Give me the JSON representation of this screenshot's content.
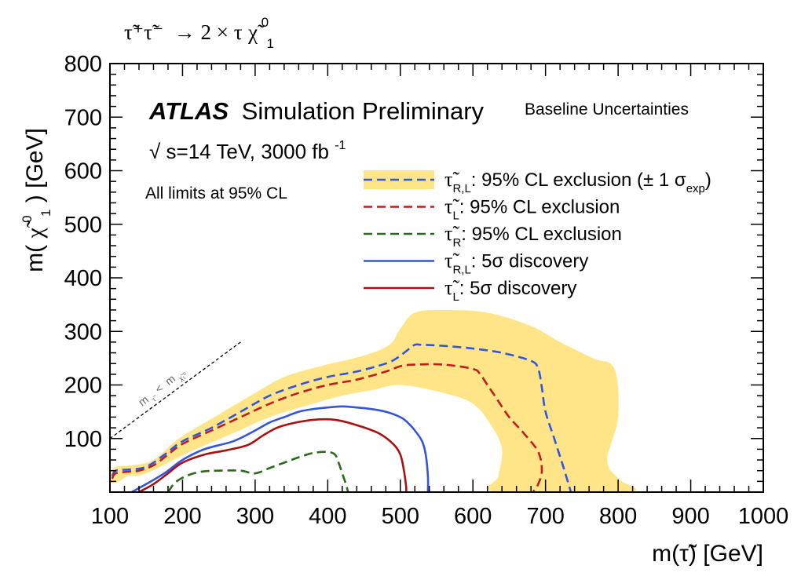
{
  "chart_data": {
    "type": "line",
    "title": "τ̃⁺τ̃⁻ → 2 × τχ̃⁰₁",
    "title_parts": {
      "lhs": "τ̃⁺τ̃⁻",
      "arrow": "→ 2 × τ",
      "chi": "χ̃",
      "sup": "0",
      "sub": "1"
    },
    "xlabel": "m(τ̃) [GeV]",
    "ylabel": "m(χ̃⁰₁) [GeV]",
    "ylabel_parts": {
      "pre": "m(",
      "chi": "χ̃",
      "sup": "0",
      "sub": "1",
      "post": ") [GeV]"
    },
    "xlim": [
      100,
      1000
    ],
    "ylim": [
      0,
      800
    ],
    "xticks": [
      "100",
      "200",
      "300",
      "400",
      "500",
      "600",
      "700",
      "800",
      "900",
      "1000"
    ],
    "yticks": [
      "100",
      "200",
      "300",
      "400",
      "500",
      "600",
      "700",
      "800"
    ],
    "grid": false,
    "legend_position": "top-right",
    "annotations": {
      "atlas": "ATLAS",
      "simulation": "Simulation Preliminary",
      "energy": "√s=14 TeV, 3000 fb⁻¹",
      "energy_parts": {
        "sqrt": "√",
        "s": "s=14 TeV, 3000 fb",
        "sup": "-1"
      },
      "limits": "All limits at 95% CL",
      "uncert": "Baseline Uncertainties",
      "diag": "m_τ̃ < m_χ̃⁰₁",
      "diag_parts": {
        "m": "m",
        "tau_sub": "τ̃",
        "lt": "<",
        "m2": "m",
        "chi_sub": "χ̃₁⁰"
      }
    },
    "colors": {
      "band": "#ffe588",
      "expected_RL": "#3355dd",
      "expected_L": "#c21c1c",
      "expected_R": "#2a6a1a",
      "discovery_RL": "#3355dd",
      "discovery_L": "#aa1010"
    },
    "band_sigma_exp": {
      "name": "τ̃R,L: 95% CL exclusion (± 1 σexp)",
      "points": [
        [
          100,
          20
        ],
        [
          105,
          45
        ],
        [
          130,
          50
        ],
        [
          160,
          60
        ],
        [
          195,
          100
        ],
        [
          250,
          145
        ],
        [
          300,
          185
        ],
        [
          340,
          215
        ],
        [
          390,
          235
        ],
        [
          450,
          255
        ],
        [
          485,
          275
        ],
        [
          500,
          305
        ],
        [
          520,
          335
        ],
        [
          560,
          340
        ],
        [
          620,
          335
        ],
        [
          680,
          310
        ],
        [
          720,
          280
        ],
        [
          765,
          250
        ],
        [
          795,
          230
        ],
        [
          800,
          140
        ],
        [
          785,
          60
        ],
        [
          800,
          25
        ],
        [
          815,
          0
        ],
        [
          633,
          0
        ],
        [
          635,
          30
        ],
        [
          640,
          80
        ],
        [
          625,
          125
        ],
        [
          600,
          165
        ],
        [
          560,
          185
        ],
        [
          500,
          200
        ],
        [
          460,
          190
        ],
        [
          420,
          180
        ],
        [
          380,
          165
        ],
        [
          320,
          140
        ],
        [
          270,
          110
        ],
        [
          210,
          75
        ],
        [
          150,
          35
        ],
        [
          125,
          30
        ],
        [
          110,
          18
        ]
      ]
    },
    "series": [
      {
        "key": "expected_RL",
        "name": "τ̃R,L: 95% CL exclusion (± 1 σexp)",
        "style": "dashed",
        "x": [
          103,
          108,
          125,
          145,
          160,
          180,
          200,
          240,
          280,
          320,
          360,
          400,
          440,
          480,
          495,
          510,
          520,
          530,
          560,
          600,
          640,
          680,
          690,
          695,
          700,
          712,
          725,
          735
        ],
        "y": [
          30,
          40,
          42,
          45,
          55,
          75,
          95,
          120,
          150,
          180,
          200,
          215,
          225,
          240,
          250,
          265,
          275,
          275,
          273,
          268,
          260,
          245,
          230,
          195,
          150,
          100,
          45,
          0
        ]
      },
      {
        "key": "expected_L",
        "name": "τ̃L: 95% CL exclusion",
        "style": "dashed",
        "x": [
          103,
          108,
          125,
          140,
          160,
          180,
          200,
          240,
          280,
          320,
          360,
          400,
          440,
          480,
          500,
          520,
          560,
          600,
          610,
          620,
          630,
          650,
          670,
          690,
          695,
          690,
          685,
          683
        ],
        "y": [
          25,
          35,
          38,
          40,
          50,
          70,
          90,
          115,
          140,
          165,
          185,
          200,
          210,
          225,
          235,
          238,
          238,
          230,
          220,
          200,
          180,
          140,
          110,
          75,
          40,
          15,
          5,
          0
        ]
      },
      {
        "key": "expected_R",
        "name": "τ̃R: 95% CL exclusion",
        "style": "dashed",
        "x": [
          180,
          190,
          205,
          225,
          250,
          280,
          300,
          320,
          340,
          360,
          380,
          400,
          410,
          415,
          420,
          425,
          428
        ],
        "y": [
          0,
          18,
          30,
          38,
          40,
          40,
          35,
          45,
          55,
          65,
          73,
          75,
          70,
          55,
          35,
          15,
          0
        ]
      },
      {
        "key": "discovery_RL",
        "name": "τ̃R,L: 5σ discovery",
        "style": "solid",
        "x": [
          130,
          150,
          175,
          200,
          230,
          270,
          300,
          320,
          340,
          360,
          380,
          400,
          420,
          440,
          460,
          480,
          500,
          510,
          520,
          530,
          535,
          538,
          538
        ],
        "y": [
          0,
          15,
          35,
          60,
          80,
          95,
          115,
          130,
          140,
          150,
          155,
          158,
          160,
          158,
          155,
          150,
          140,
          130,
          115,
          95,
          70,
          30,
          0
        ]
      },
      {
        "key": "discovery_L",
        "name": "τ̃L: 5σ discovery",
        "style": "solid",
        "x": [
          140,
          160,
          180,
          200,
          230,
          260,
          290,
          310,
          330,
          350,
          380,
          410,
          440,
          470,
          490,
          500,
          505,
          508,
          508
        ],
        "y": [
          0,
          15,
          35,
          55,
          70,
          78,
          88,
          105,
          120,
          128,
          135,
          135,
          125,
          110,
          90,
          70,
          40,
          10,
          0
        ]
      }
    ],
    "legend": [
      {
        "key": "expected_RL",
        "tau": "τ̃",
        "sub": "R,L",
        "text": ": 95% CL exclusion (",
        "pm": "± 1 σ",
        "pm_sub": "exp",
        "close": ")",
        "band": true,
        "style": "dashed"
      },
      {
        "key": "expected_L",
        "tau": "τ̃",
        "sub": "L",
        "text": ": 95% CL exclusion",
        "band": false,
        "style": "dashed"
      },
      {
        "key": "expected_R",
        "tau": "τ̃",
        "sub": "R",
        "text": ": 95% CL exclusion",
        "band": false,
        "style": "dashed"
      },
      {
        "key": "discovery_RL",
        "tau": "τ̃",
        "sub": "R,L",
        "text": ": 5σ discovery",
        "band": false,
        "style": "solid"
      },
      {
        "key": "discovery_L",
        "tau": "τ̃",
        "sub": "L",
        "text": ": 5σ discovery",
        "band": false,
        "style": "solid"
      }
    ]
  }
}
